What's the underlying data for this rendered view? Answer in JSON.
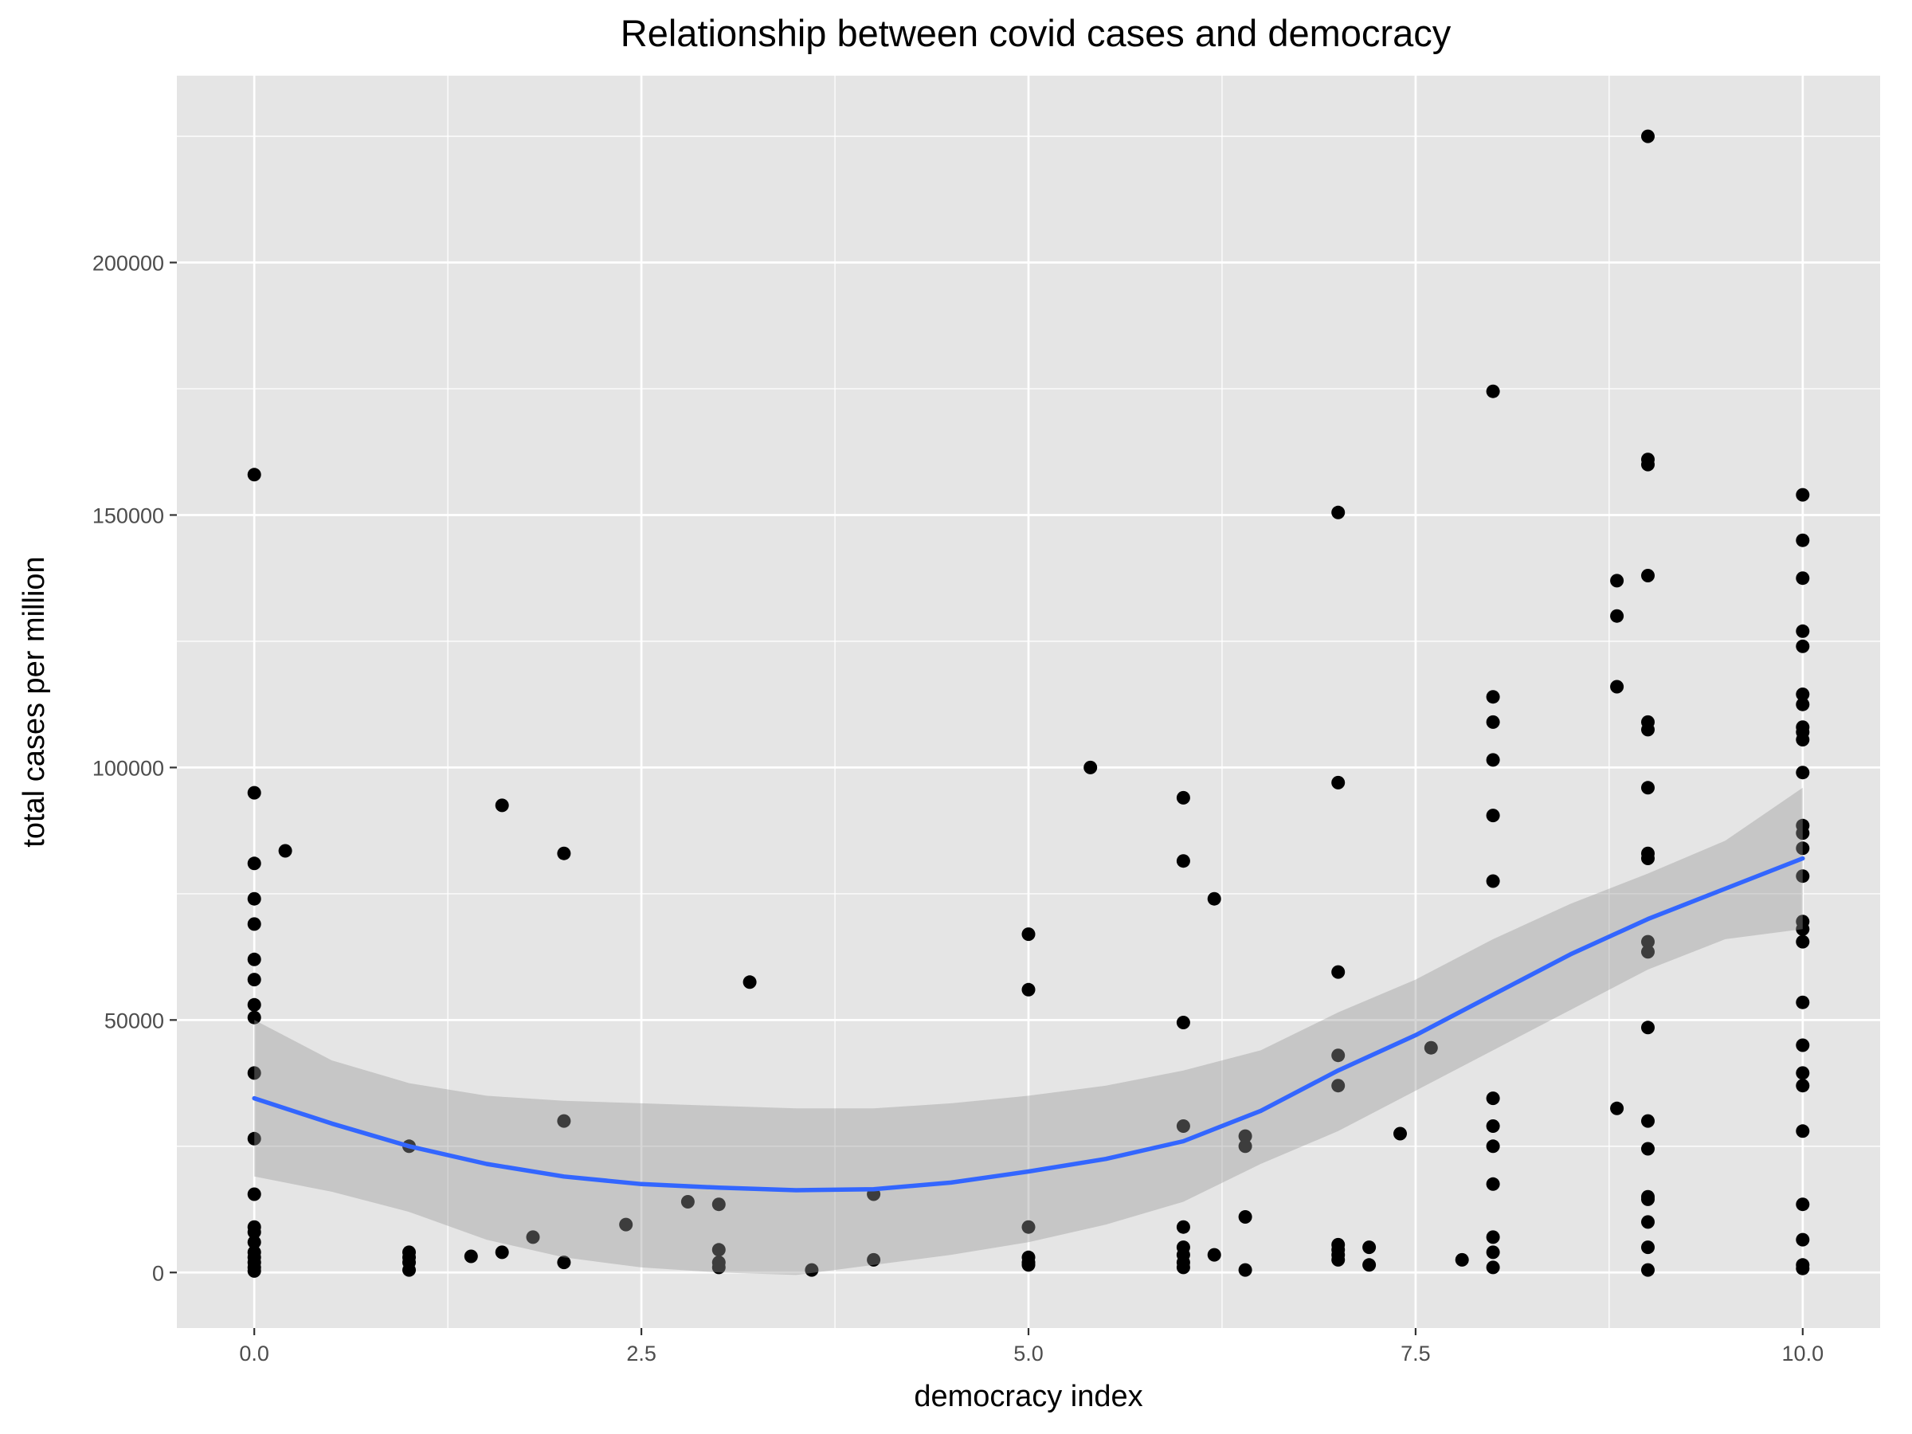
{
  "chart_data": {
    "type": "scatter",
    "title": "Relationship between covid cases and democracy",
    "xlabel": "democracy index",
    "ylabel": "total cases per million",
    "xlim": [
      -0.5,
      10.5
    ],
    "ylim": [
      -11000,
      237000
    ],
    "x_ticks": [
      0,
      2.5,
      5,
      7.5,
      10
    ],
    "x_tick_labels": [
      "0.0",
      "2.5",
      "5.0",
      "7.5",
      "10.0"
    ],
    "y_ticks": [
      0,
      50000,
      100000,
      150000,
      200000
    ],
    "y_tick_labels": [
      "0",
      "50000",
      "100000",
      "150000",
      "200000"
    ],
    "grid": true,
    "legend": "none",
    "colors": {
      "panel": "#e5e5e5",
      "grid": "#ffffff",
      "point": "#000000",
      "smooth_line": "#3366ff",
      "ribbon": "#999999"
    },
    "points": [
      [
        0,
        158000
      ],
      [
        0,
        95000
      ],
      [
        0,
        81000
      ],
      [
        0,
        74000
      ],
      [
        0,
        69000
      ],
      [
        0,
        62000
      ],
      [
        0,
        58000
      ],
      [
        0,
        53000
      ],
      [
        0,
        50500
      ],
      [
        0,
        39500
      ],
      [
        0,
        26500
      ],
      [
        0,
        15500
      ],
      [
        0,
        9000
      ],
      [
        0,
        8000
      ],
      [
        0,
        6000
      ],
      [
        0,
        4000
      ],
      [
        0,
        3000
      ],
      [
        0,
        2000
      ],
      [
        0,
        1000
      ],
      [
        0,
        300
      ],
      [
        0.2,
        83500
      ],
      [
        1,
        25000
      ],
      [
        1,
        4000
      ],
      [
        1,
        3000
      ],
      [
        1,
        2000
      ],
      [
        1,
        500
      ],
      [
        1.4,
        3200
      ],
      [
        1.6,
        92500
      ],
      [
        1.6,
        4000
      ],
      [
        1.8,
        7000
      ],
      [
        2,
        83000
      ],
      [
        2,
        30000
      ],
      [
        2,
        2000
      ],
      [
        2.4,
        9500
      ],
      [
        2.8,
        14000
      ],
      [
        3,
        13500
      ],
      [
        3,
        4500
      ],
      [
        3,
        2000
      ],
      [
        3,
        1000
      ],
      [
        3.2,
        57500
      ],
      [
        3.6,
        500
      ],
      [
        4,
        15500
      ],
      [
        4,
        2500
      ],
      [
        5,
        67000
      ],
      [
        5,
        56000
      ],
      [
        5,
        9000
      ],
      [
        5,
        3000
      ],
      [
        5,
        2000
      ],
      [
        5,
        1500
      ],
      [
        5.4,
        100000
      ],
      [
        6,
        94000
      ],
      [
        6,
        81500
      ],
      [
        6,
        49500
      ],
      [
        6,
        29000
      ],
      [
        6,
        9000
      ],
      [
        6,
        5000
      ],
      [
        6,
        3500
      ],
      [
        6,
        2000
      ],
      [
        6,
        1000
      ],
      [
        6.2,
        74000
      ],
      [
        6.2,
        3500
      ],
      [
        6.4,
        27000
      ],
      [
        6.4,
        25000
      ],
      [
        6.4,
        11000
      ],
      [
        6.4,
        500
      ],
      [
        7,
        150500
      ],
      [
        7,
        97000
      ],
      [
        7,
        59500
      ],
      [
        7,
        43000
      ],
      [
        7,
        37000
      ],
      [
        7,
        5500
      ],
      [
        7,
        4500
      ],
      [
        7,
        3500
      ],
      [
        7,
        2500
      ],
      [
        7.2,
        5000
      ],
      [
        7.2,
        1500
      ],
      [
        7.4,
        27500
      ],
      [
        7.6,
        44500
      ],
      [
        7.8,
        2500
      ],
      [
        8,
        174500
      ],
      [
        8,
        114000
      ],
      [
        8,
        109000
      ],
      [
        8,
        101500
      ],
      [
        8,
        90500
      ],
      [
        8,
        77500
      ],
      [
        8,
        34500
      ],
      [
        8,
        29000
      ],
      [
        8,
        25000
      ],
      [
        8,
        17500
      ],
      [
        8,
        7000
      ],
      [
        8,
        4000
      ],
      [
        8,
        1000
      ],
      [
        8.8,
        137000
      ],
      [
        8.8,
        130000
      ],
      [
        8.8,
        116000
      ],
      [
        8.8,
        32500
      ],
      [
        9,
        225000
      ],
      [
        9,
        161000
      ],
      [
        9,
        160000
      ],
      [
        9,
        138000
      ],
      [
        9,
        109000
      ],
      [
        9,
        107500
      ],
      [
        9,
        96000
      ],
      [
        9,
        83000
      ],
      [
        9,
        82000
      ],
      [
        9,
        65500
      ],
      [
        9,
        63500
      ],
      [
        9,
        48500
      ],
      [
        9,
        30000
      ],
      [
        9,
        24500
      ],
      [
        9,
        15000
      ],
      [
        9,
        14500
      ],
      [
        9,
        10000
      ],
      [
        9,
        5000
      ],
      [
        9,
        500
      ],
      [
        10,
        154000
      ],
      [
        10,
        145000
      ],
      [
        10,
        137500
      ],
      [
        10,
        127000
      ],
      [
        10,
        124000
      ],
      [
        10,
        114500
      ],
      [
        10,
        112500
      ],
      [
        10,
        108000
      ],
      [
        10,
        107000
      ],
      [
        10,
        105500
      ],
      [
        10,
        99000
      ],
      [
        10,
        88500
      ],
      [
        10,
        87000
      ],
      [
        10,
        84000
      ],
      [
        10,
        78500
      ],
      [
        10,
        69500
      ],
      [
        10,
        68000
      ],
      [
        10,
        65500
      ],
      [
        10,
        53500
      ],
      [
        10,
        45000
      ],
      [
        10,
        39500
      ],
      [
        10,
        37000
      ],
      [
        10,
        28000
      ],
      [
        10,
        13500
      ],
      [
        10,
        6500
      ],
      [
        10,
        1500
      ],
      [
        10,
        800
      ]
    ],
    "smooth": {
      "x": [
        0,
        0.5,
        1,
        1.5,
        2,
        2.5,
        3,
        3.5,
        4,
        4.5,
        5,
        5.5,
        6,
        6.5,
        7,
        7.5,
        8,
        8.5,
        9,
        9.5,
        10
      ],
      "y": [
        34500,
        29500,
        25000,
        21500,
        19000,
        17500,
        16800,
        16300,
        16500,
        17800,
        20000,
        22500,
        26000,
        32000,
        40000,
        47000,
        55000,
        63000,
        70000,
        76000,
        82000
      ],
      "lower": [
        19000,
        16000,
        12000,
        6500,
        3000,
        1000,
        0,
        -500,
        1500,
        3500,
        6000,
        9500,
        14000,
        21500,
        28000,
        36000,
        44000,
        52000,
        60000,
        66000,
        68000
      ],
      "upper": [
        50000,
        42000,
        37500,
        35000,
        34000,
        33500,
        33000,
        32500,
        32500,
        33500,
        35000,
        37000,
        40000,
        44000,
        51500,
        58000,
        66000,
        73000,
        79000,
        85500,
        96000
      ]
    }
  }
}
